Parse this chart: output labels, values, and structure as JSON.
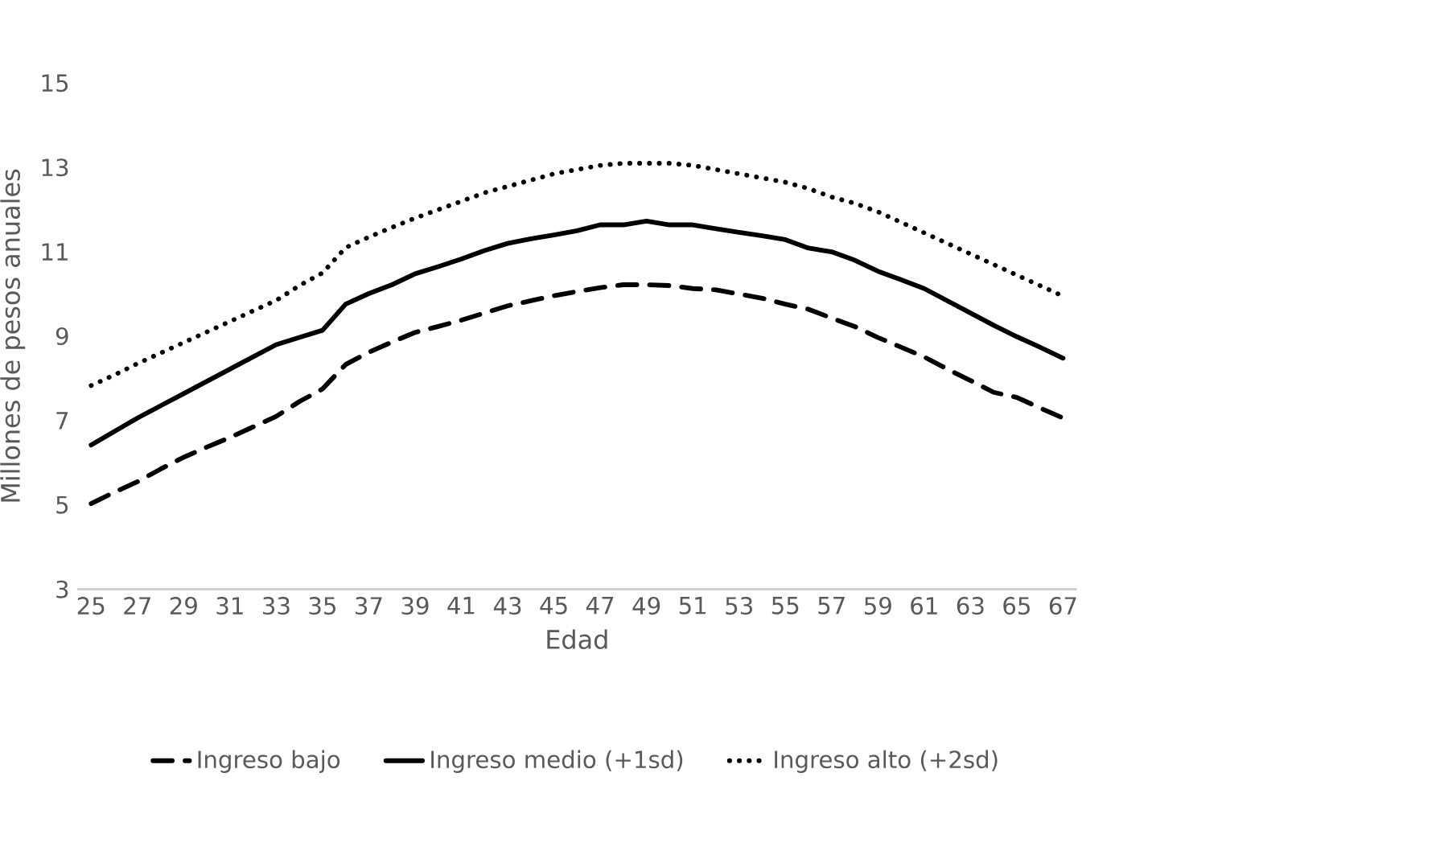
{
  "chart_data": {
    "type": "line",
    "xlabel": "Edad",
    "ylabel": "Millones de pesos anuales",
    "categories": [
      "25",
      null,
      "27",
      null,
      "29",
      null,
      "31",
      null,
      "33",
      null,
      "35",
      null,
      "37",
      null,
      "39",
      null,
      "41",
      null,
      "43",
      null,
      "45",
      null,
      "47",
      null,
      "49",
      null,
      "51",
      null,
      "53",
      null,
      "55",
      null,
      "57",
      null,
      "59",
      null,
      "61",
      null,
      "63",
      null,
      "65",
      null,
      "67"
    ],
    "ylim": [
      3,
      15
    ],
    "yticks": [
      3,
      5,
      7,
      9,
      11,
      13,
      15
    ],
    "legend": "bottom",
    "series": [
      {
        "name": "Ingreso bajo",
        "color": "#000000",
        "line_style": "dashed",
        "values": [
          5.03,
          5.3,
          5.55,
          5.85,
          6.13,
          6.37,
          6.6,
          6.85,
          7.1,
          7.45,
          7.75,
          8.33,
          8.62,
          8.86,
          9.09,
          9.23,
          9.38,
          9.55,
          9.72,
          9.84,
          9.96,
          10.06,
          10.15,
          10.22,
          10.22,
          10.2,
          10.13,
          10.1,
          10.0,
          9.9,
          9.76,
          9.64,
          9.43,
          9.23,
          8.97,
          8.74,
          8.51,
          8.22,
          7.95,
          7.67,
          7.55,
          7.3,
          7.06
        ]
      },
      {
        "name": "Ingreso medio (+1sd)",
        "color": "#000000",
        "line_style": "solid",
        "values": [
          6.42,
          6.74,
          7.06,
          7.35,
          7.64,
          7.93,
          8.22,
          8.51,
          8.8,
          8.97,
          9.14,
          9.76,
          10.01,
          10.22,
          10.48,
          10.65,
          10.83,
          11.03,
          11.2,
          11.31,
          11.4,
          11.5,
          11.64,
          11.64,
          11.73,
          11.64,
          11.64,
          11.55,
          11.46,
          11.38,
          11.29,
          11.09,
          11.0,
          10.8,
          10.54,
          10.34,
          10.13,
          9.84,
          9.55,
          9.26,
          8.99,
          8.74,
          8.48
        ]
      },
      {
        "name": "Ingreso alto (+2sd)",
        "color": "#000000",
        "line_style": "dotted",
        "values": [
          7.83,
          8.08,
          8.35,
          8.6,
          8.85,
          9.1,
          9.35,
          9.6,
          9.85,
          10.2,
          10.5,
          11.1,
          11.35,
          11.58,
          11.8,
          12.0,
          12.2,
          12.4,
          12.55,
          12.7,
          12.85,
          12.95,
          13.05,
          13.1,
          13.1,
          13.1,
          13.05,
          12.95,
          12.85,
          12.75,
          12.65,
          12.5,
          12.3,
          12.15,
          11.95,
          11.7,
          11.45,
          11.2,
          10.95,
          10.7,
          10.45,
          10.2,
          9.95
        ]
      }
    ]
  }
}
